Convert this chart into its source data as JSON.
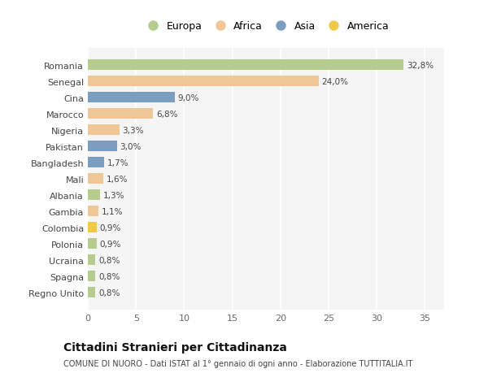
{
  "countries": [
    "Romania",
    "Senegal",
    "Cina",
    "Marocco",
    "Nigeria",
    "Pakistan",
    "Bangladesh",
    "Mali",
    "Albania",
    "Gambia",
    "Colombia",
    "Polonia",
    "Ucraina",
    "Spagna",
    "Regno Unito"
  ],
  "values": [
    32.8,
    24.0,
    9.0,
    6.8,
    3.3,
    3.0,
    1.7,
    1.6,
    1.3,
    1.1,
    0.9,
    0.9,
    0.8,
    0.8,
    0.8
  ],
  "labels": [
    "32,8%",
    "24,0%",
    "9,0%",
    "6,8%",
    "3,3%",
    "3,0%",
    "1,7%",
    "1,6%",
    "1,3%",
    "1,1%",
    "0,9%",
    "0,9%",
    "0,8%",
    "0,8%",
    "0,8%"
  ],
  "continents": [
    "Europa",
    "Africa",
    "Asia",
    "Africa",
    "Africa",
    "Asia",
    "Asia",
    "Africa",
    "Europa",
    "Africa",
    "America",
    "Europa",
    "Europa",
    "Europa",
    "Europa"
  ],
  "colors": {
    "Europa": "#b5cc8e",
    "Africa": "#f0c898",
    "Asia": "#7b9dc0",
    "America": "#f0c84a"
  },
  "legend_order": [
    "Europa",
    "Africa",
    "Asia",
    "America"
  ],
  "background_color": "#ffffff",
  "plot_bg_color": "#f5f5f5",
  "grid_color": "#ffffff",
  "title": "Cittadini Stranieri per Cittadinanza",
  "subtitle": "COMUNE DI NUORO - Dati ISTAT al 1° gennaio di ogni anno - Elaborazione TUTTITALIA.IT",
  "xlim": [
    0,
    37
  ],
  "xticks": [
    0,
    5,
    10,
    15,
    20,
    25,
    30,
    35
  ]
}
